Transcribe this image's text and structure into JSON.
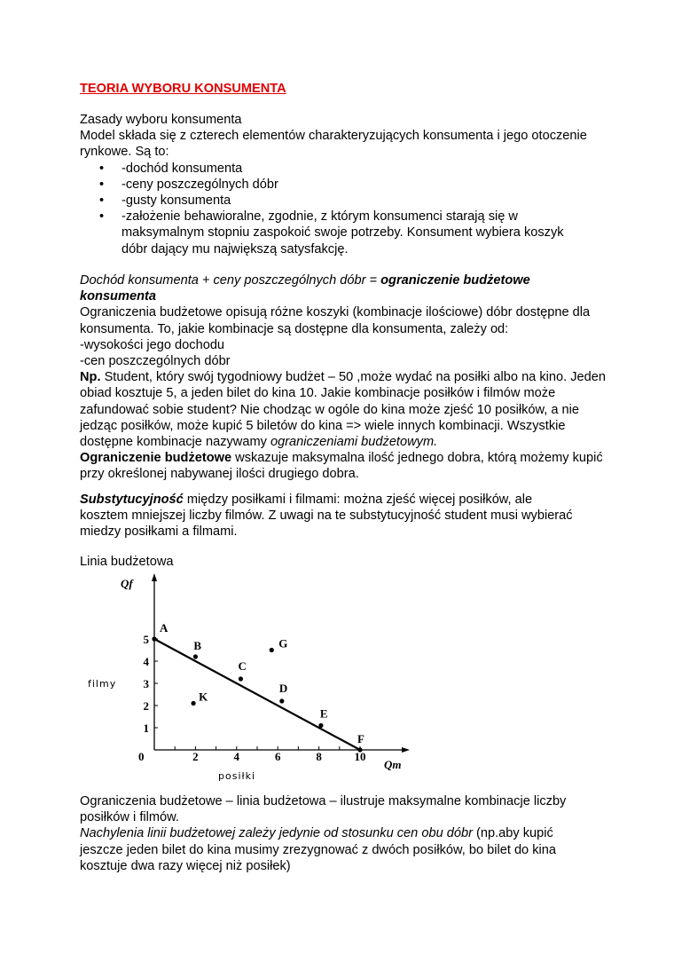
{
  "title": "TEORIA WYBORU KONSUMENTA",
  "intro": {
    "heading": "Zasady wyboru konsumenta",
    "text": "Model składa się z czterech elementów charakteryzujących konsumenta i jego otoczenie rynkowe. Są to:",
    "bullets": [
      "-dochód konsumenta",
      "-ceny poszczególnych dóbr",
      "-gusty konsumenta",
      "-założenie behawioralne, zgodnie, z którym konsumenci starają się w maksymalnym stopniu zaspokoić swoje potrzeby. Konsument wybiera koszyk dóbr dający mu największą satysfakcję."
    ]
  },
  "budget": {
    "formula_italic": "Dochód konsumenta + ceny poszczególnych dóbr = ",
    "formula_bold": "ograniczenie budżetowe konsumenta",
    "p1": "Ograniczenia budżetowe opisują różne koszyki (kombinacje ilościowe) dóbr dostępne dla konsumenta. To, jakie kombinacje są dostępne dla konsumenta, zależy od:",
    "dep1": "-wysokości jego dochodu",
    "dep2": "-cen poszczególnych dóbr",
    "np_label": "Np.",
    "np_text": " Student, który swój tygodniowy budżet – 50 ,może wydać na posiłki albo na kino. Jeden obiad kosztuje 5, a jeden bilet do kina 10. Jakie kombinacje posiłków i filmów może zafundować sobie student? Nie chodząc w ogóle do kina może zjeść 10 posiłków, a nie jedząc posiłków, może kupić 5 biletów do kina => wiele innych kombinacji. Wszystkie dostępne kombinacje nazywamy ",
    "np_italic": "ograniczeniami budżetowym.",
    "def_bold": "Ograniczenie budżetowe",
    "def_text": " wskazuje maksymalna ilość jednego dobra, którą możemy kupić przy określonej nabywanej ilości drugiego dobra."
  },
  "subst": {
    "bold_italic": "Substytucyjność",
    "text": " między posiłkami i filmami: można zjeść więcej posiłków, ale kosztem mniejszej liczby filmów. Z uwagi na te substytucyjność student musi wybierać miedzy posiłkami a filmami."
  },
  "chart_caption": "Linia budżetowa",
  "chart_data": {
    "type": "line",
    "xlabel": "posiłki",
    "ylabel": "filmy",
    "x_axis_symbol": "Qm",
    "y_axis_symbol": "Qf",
    "origin_label": "0",
    "xticks": [
      "2",
      "4",
      "6",
      "8",
      "10"
    ],
    "yticks": [
      "1",
      "2",
      "3",
      "4",
      "5"
    ],
    "xlim": [
      0,
      12
    ],
    "ylim": [
      0,
      8
    ],
    "grid": false,
    "budget_line": [
      [
        0,
        5
      ],
      [
        10,
        0
      ]
    ],
    "points": [
      {
        "label": "A",
        "x": 0,
        "y": 5
      },
      {
        "label": "B",
        "x": 2,
        "y": 4.2
      },
      {
        "label": "C",
        "x": 4.2,
        "y": 3.2
      },
      {
        "label": "D",
        "x": 6.2,
        "y": 2.2
      },
      {
        "label": "E",
        "x": 8.1,
        "y": 1.1
      },
      {
        "label": "F",
        "x": 10,
        "y": 0
      },
      {
        "label": "G",
        "x": 5.7,
        "y": 4.5
      },
      {
        "label": "K",
        "x": 1.9,
        "y": 2.1
      }
    ]
  },
  "conclusion": {
    "p1": "Ograniczenia budżetowe – linia budżetowa – ilustruje maksymalne kombinacje liczby posiłków i filmów.",
    "italic": "Nachylenia linii budżetowej zależy jedynie od stosunku cen obu dóbr",
    "text": " (np.aby kupić jeszcze jeden bilet do kina musimy zrezygnować z dwóch posiłków, bo bilet do kina kosztuje dwa razy więcej niż posiłek)"
  }
}
